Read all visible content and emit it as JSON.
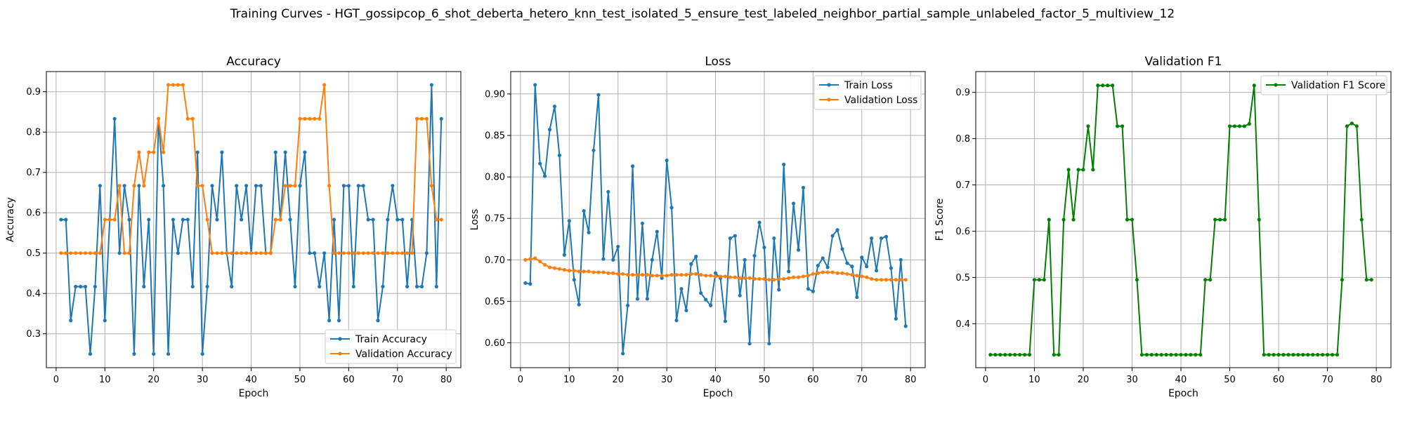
{
  "figure": {
    "suptitle": "Training Curves - HGT_gossipcop_6_shot_deberta_hetero_knn_test_isolated_5_ensure_test_labeled_neighbor_partial_sample_unlabeled_factor_5_multiview_12"
  },
  "chart_data": [
    {
      "type": "line",
      "title": "Accuracy",
      "xlabel": "Epoch",
      "ylabel": "Accuracy",
      "xlim": [
        -2,
        83
      ],
      "ylim": [
        0.216,
        0.95
      ],
      "xticks": [
        0,
        10,
        20,
        30,
        40,
        50,
        60,
        70,
        80
      ],
      "yticks": [
        0.3,
        0.4,
        0.5,
        0.6,
        0.7,
        0.8,
        0.9
      ],
      "grid": true,
      "legend_position": "lower-right",
      "x": [
        1,
        2,
        3,
        4,
        5,
        6,
        7,
        8,
        9,
        10,
        11,
        12,
        13,
        14,
        15,
        16,
        17,
        18,
        19,
        20,
        21,
        22,
        23,
        24,
        25,
        26,
        27,
        28,
        29,
        30,
        31,
        32,
        33,
        34,
        35,
        36,
        37,
        38,
        39,
        40,
        41,
        42,
        43,
        44,
        45,
        46,
        47,
        48,
        49,
        50,
        51,
        52,
        53,
        54,
        55,
        56,
        57,
        58,
        59,
        60,
        61,
        62,
        63,
        64,
        65,
        66,
        67,
        68,
        69,
        70,
        71,
        72,
        73,
        74,
        75,
        76,
        77,
        78,
        79
      ],
      "series": [
        {
          "name": "Train Accuracy",
          "color": "#1f77b4",
          "values": [
            0.583,
            0.583,
            0.333,
            0.417,
            0.417,
            0.417,
            0.25,
            0.417,
            0.667,
            0.333,
            0.583,
            0.833,
            0.5,
            0.667,
            0.583,
            0.25,
            0.667,
            0.417,
            0.583,
            0.25,
            0.833,
            0.667,
            0.25,
            0.583,
            0.5,
            0.583,
            0.583,
            0.417,
            0.75,
            0.25,
            0.417,
            0.667,
            0.583,
            0.75,
            0.5,
            0.417,
            0.667,
            0.583,
            0.667,
            0.5,
            0.667,
            0.667,
            0.5,
            0.5,
            0.75,
            0.583,
            0.75,
            0.583,
            0.417,
            0.667,
            0.75,
            0.5,
            0.5,
            0.417,
            0.5,
            0.333,
            0.583,
            0.333,
            0.667,
            0.667,
            0.417,
            0.667,
            0.667,
            0.583,
            0.583,
            0.333,
            0.417,
            0.583,
            0.667,
            0.583,
            0.583,
            0.417,
            0.583,
            0.417,
            0.417,
            0.5,
            0.917,
            0.417,
            0.833
          ]
        },
        {
          "name": "Validation Accuracy",
          "color": "#ff7f0e",
          "values": [
            0.5,
            0.5,
            0.5,
            0.5,
            0.5,
            0.5,
            0.5,
            0.5,
            0.5,
            0.583,
            0.583,
            0.583,
            0.667,
            0.5,
            0.5,
            0.667,
            0.75,
            0.667,
            0.75,
            0.75,
            0.833,
            0.75,
            0.917,
            0.917,
            0.917,
            0.917,
            0.833,
            0.833,
            0.667,
            0.667,
            0.583,
            0.5,
            0.5,
            0.5,
            0.5,
            0.5,
            0.5,
            0.5,
            0.5,
            0.5,
            0.5,
            0.5,
            0.5,
            0.5,
            0.583,
            0.583,
            0.667,
            0.667,
            0.667,
            0.833,
            0.833,
            0.833,
            0.833,
            0.833,
            0.917,
            0.667,
            0.5,
            0.5,
            0.5,
            0.5,
            0.5,
            0.5,
            0.5,
            0.5,
            0.5,
            0.5,
            0.5,
            0.5,
            0.5,
            0.5,
            0.5,
            0.5,
            0.5,
            0.833,
            0.833,
            0.833,
            0.667,
            0.583,
            0.583
          ]
        }
      ]
    },
    {
      "type": "line",
      "title": "Loss",
      "xlabel": "Epoch",
      "ylabel": "Loss",
      "xlim": [
        -2,
        83
      ],
      "ylim": [
        0.57,
        0.927
      ],
      "xticks": [
        0,
        10,
        20,
        30,
        40,
        50,
        60,
        70,
        80
      ],
      "yticks": [
        0.6,
        0.65,
        0.7,
        0.75,
        0.8,
        0.85,
        0.9
      ],
      "ytick_labels": [
        "0.60",
        "0.65",
        "0.70",
        "0.75",
        "0.80",
        "0.85",
        "0.90"
      ],
      "grid": true,
      "legend_position": "upper-right",
      "x": [
        1,
        2,
        3,
        4,
        5,
        6,
        7,
        8,
        9,
        10,
        11,
        12,
        13,
        14,
        15,
        16,
        17,
        18,
        19,
        20,
        21,
        22,
        23,
        24,
        25,
        26,
        27,
        28,
        29,
        30,
        31,
        32,
        33,
        34,
        35,
        36,
        37,
        38,
        39,
        40,
        41,
        42,
        43,
        44,
        45,
        46,
        47,
        48,
        49,
        50,
        51,
        52,
        53,
        54,
        55,
        56,
        57,
        58,
        59,
        60,
        61,
        62,
        63,
        64,
        65,
        66,
        67,
        68,
        69,
        70,
        71,
        72,
        73,
        74,
        75,
        76,
        77,
        78,
        79
      ],
      "series": [
        {
          "name": "Train Loss",
          "color": "#1f77b4",
          "values": [
            0.672,
            0.671,
            0.911,
            0.816,
            0.801,
            0.857,
            0.885,
            0.826,
            0.706,
            0.747,
            0.676,
            0.646,
            0.759,
            0.733,
            0.832,
            0.899,
            0.701,
            0.782,
            0.7,
            0.716,
            0.587,
            0.645,
            0.813,
            0.653,
            0.744,
            0.653,
            0.7,
            0.734,
            0.678,
            0.82,
            0.763,
            0.627,
            0.665,
            0.639,
            0.695,
            0.704,
            0.66,
            0.652,
            0.645,
            0.684,
            0.678,
            0.626,
            0.726,
            0.729,
            0.657,
            0.7,
            0.599,
            0.705,
            0.745,
            0.715,
            0.599,
            0.726,
            0.664,
            0.815,
            0.686,
            0.768,
            0.712,
            0.787,
            0.665,
            0.662,
            0.693,
            0.702,
            0.691,
            0.729,
            0.736,
            0.713,
            0.696,
            0.692,
            0.655,
            0.703,
            0.692,
            0.726,
            0.687,
            0.726,
            0.728,
            0.69,
            0.629,
            0.7,
            0.62
          ]
        },
        {
          "name": "Validation Loss",
          "color": "#ff7f0e",
          "values": [
            0.7,
            0.701,
            0.702,
            0.698,
            0.694,
            0.691,
            0.69,
            0.689,
            0.688,
            0.687,
            0.687,
            0.686,
            0.686,
            0.686,
            0.685,
            0.685,
            0.685,
            0.684,
            0.684,
            0.683,
            0.683,
            0.682,
            0.682,
            0.682,
            0.682,
            0.682,
            0.681,
            0.681,
            0.681,
            0.681,
            0.682,
            0.682,
            0.682,
            0.682,
            0.683,
            0.683,
            0.682,
            0.681,
            0.681,
            0.68,
            0.68,
            0.68,
            0.679,
            0.679,
            0.678,
            0.678,
            0.678,
            0.677,
            0.677,
            0.677,
            0.676,
            0.676,
            0.677,
            0.677,
            0.678,
            0.679,
            0.679,
            0.68,
            0.681,
            0.683,
            0.684,
            0.685,
            0.685,
            0.685,
            0.684,
            0.684,
            0.683,
            0.682,
            0.681,
            0.68,
            0.679,
            0.677,
            0.676,
            0.676,
            0.676,
            0.676,
            0.676,
            0.676,
            0.676
          ]
        }
      ]
    },
    {
      "type": "line",
      "title": "Validation F1",
      "xlabel": "Epoch",
      "ylabel": "F1 Score",
      "xlim": [
        -2,
        83
      ],
      "ylim": [
        0.305,
        0.945
      ],
      "xticks": [
        0,
        10,
        20,
        30,
        40,
        50,
        60,
        70,
        80
      ],
      "yticks": [
        0.4,
        0.5,
        0.6,
        0.7,
        0.8,
        0.9
      ],
      "grid": true,
      "legend_position": "upper-right",
      "x": [
        1,
        2,
        3,
        4,
        5,
        6,
        7,
        8,
        9,
        10,
        11,
        12,
        13,
        14,
        15,
        16,
        17,
        18,
        19,
        20,
        21,
        22,
        23,
        24,
        25,
        26,
        27,
        28,
        29,
        30,
        31,
        32,
        33,
        34,
        35,
        36,
        37,
        38,
        39,
        40,
        41,
        42,
        43,
        44,
        45,
        46,
        47,
        48,
        49,
        50,
        51,
        52,
        53,
        54,
        55,
        56,
        57,
        58,
        59,
        60,
        61,
        62,
        63,
        64,
        65,
        66,
        67,
        68,
        69,
        70,
        71,
        72,
        73,
        74,
        75,
        76,
        77,
        78,
        79
      ],
      "series": [
        {
          "name": "Validation F1 Score",
          "color": "#008000",
          "values": [
            0.333,
            0.333,
            0.333,
            0.333,
            0.333,
            0.333,
            0.333,
            0.333,
            0.333,
            0.495,
            0.495,
            0.495,
            0.625,
            0.333,
            0.333,
            0.625,
            0.733,
            0.625,
            0.733,
            0.733,
            0.827,
            0.733,
            0.915,
            0.915,
            0.915,
            0.915,
            0.827,
            0.827,
            0.625,
            0.625,
            0.495,
            0.333,
            0.333,
            0.333,
            0.333,
            0.333,
            0.333,
            0.333,
            0.333,
            0.333,
            0.333,
            0.333,
            0.333,
            0.333,
            0.495,
            0.495,
            0.625,
            0.625,
            0.625,
            0.827,
            0.827,
            0.827,
            0.827,
            0.832,
            0.915,
            0.625,
            0.333,
            0.333,
            0.333,
            0.333,
            0.333,
            0.333,
            0.333,
            0.333,
            0.333,
            0.333,
            0.333,
            0.333,
            0.333,
            0.333,
            0.333,
            0.333,
            0.495,
            0.827,
            0.833,
            0.827,
            0.625,
            0.495,
            0.495
          ]
        }
      ]
    }
  ]
}
